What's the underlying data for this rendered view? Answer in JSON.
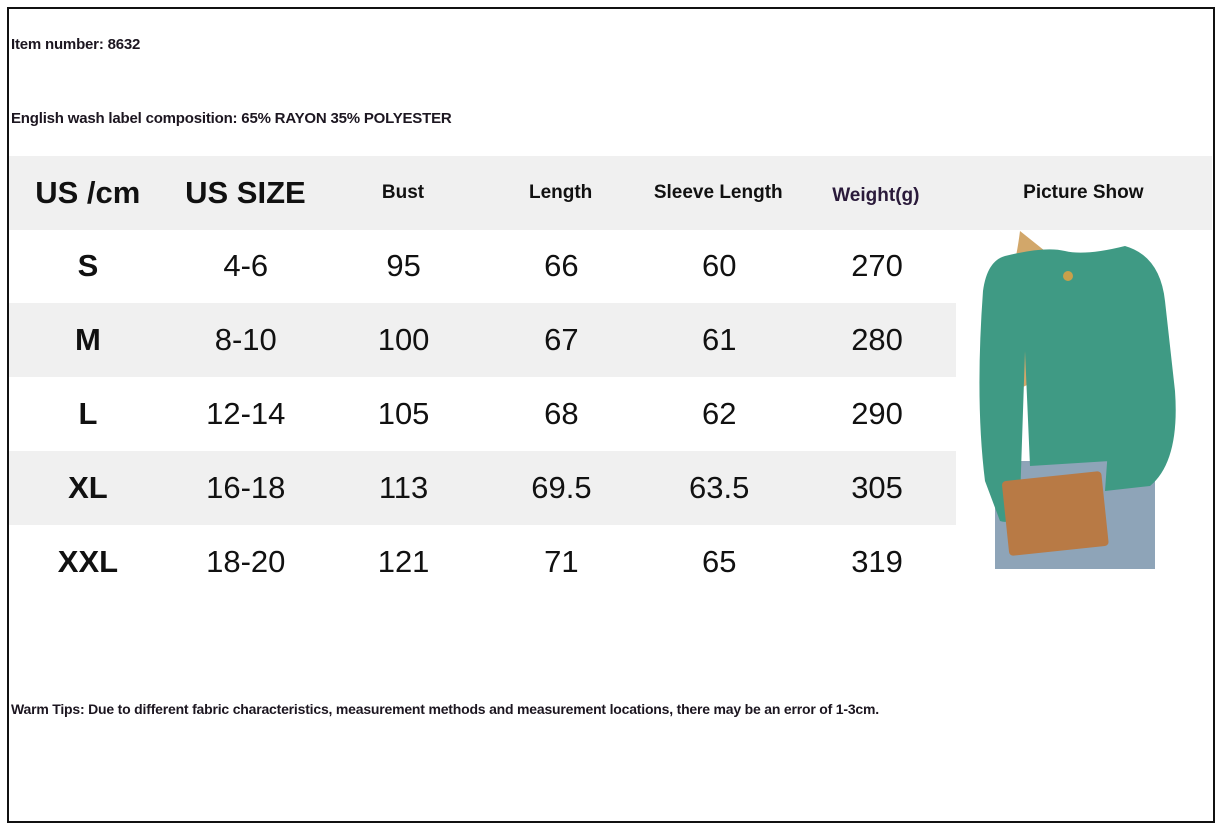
{
  "item_number": "Item number: 8632",
  "composition": "English wash label composition: 65% RAYON 35% POLYESTER",
  "table": {
    "headers": [
      "US /cm",
      "US SIZE",
      "Bust",
      "Length",
      "Sleeve Length",
      "Weight(g)",
      "Picture Show"
    ],
    "rows": [
      [
        "S",
        "4-6",
        "95",
        "66",
        "60",
        "270"
      ],
      [
        "M",
        "8-10",
        "100",
        "67",
        "61",
        "280"
      ],
      [
        "L",
        "12-14",
        "105",
        "68",
        "62",
        "290"
      ],
      [
        "XL",
        "16-18",
        "113",
        "69.5",
        "63.5",
        "305"
      ],
      [
        "XXL",
        "18-20",
        "121",
        "71",
        "65",
        "319"
      ]
    ]
  },
  "warm_tips": "Warm Tips: Due to different fabric characteristics, measurement methods and measurement locations, there may be an error of 1-3cm.",
  "colors": {
    "header_bg": "#f0f0f0",
    "garment": "#3f9a84"
  }
}
